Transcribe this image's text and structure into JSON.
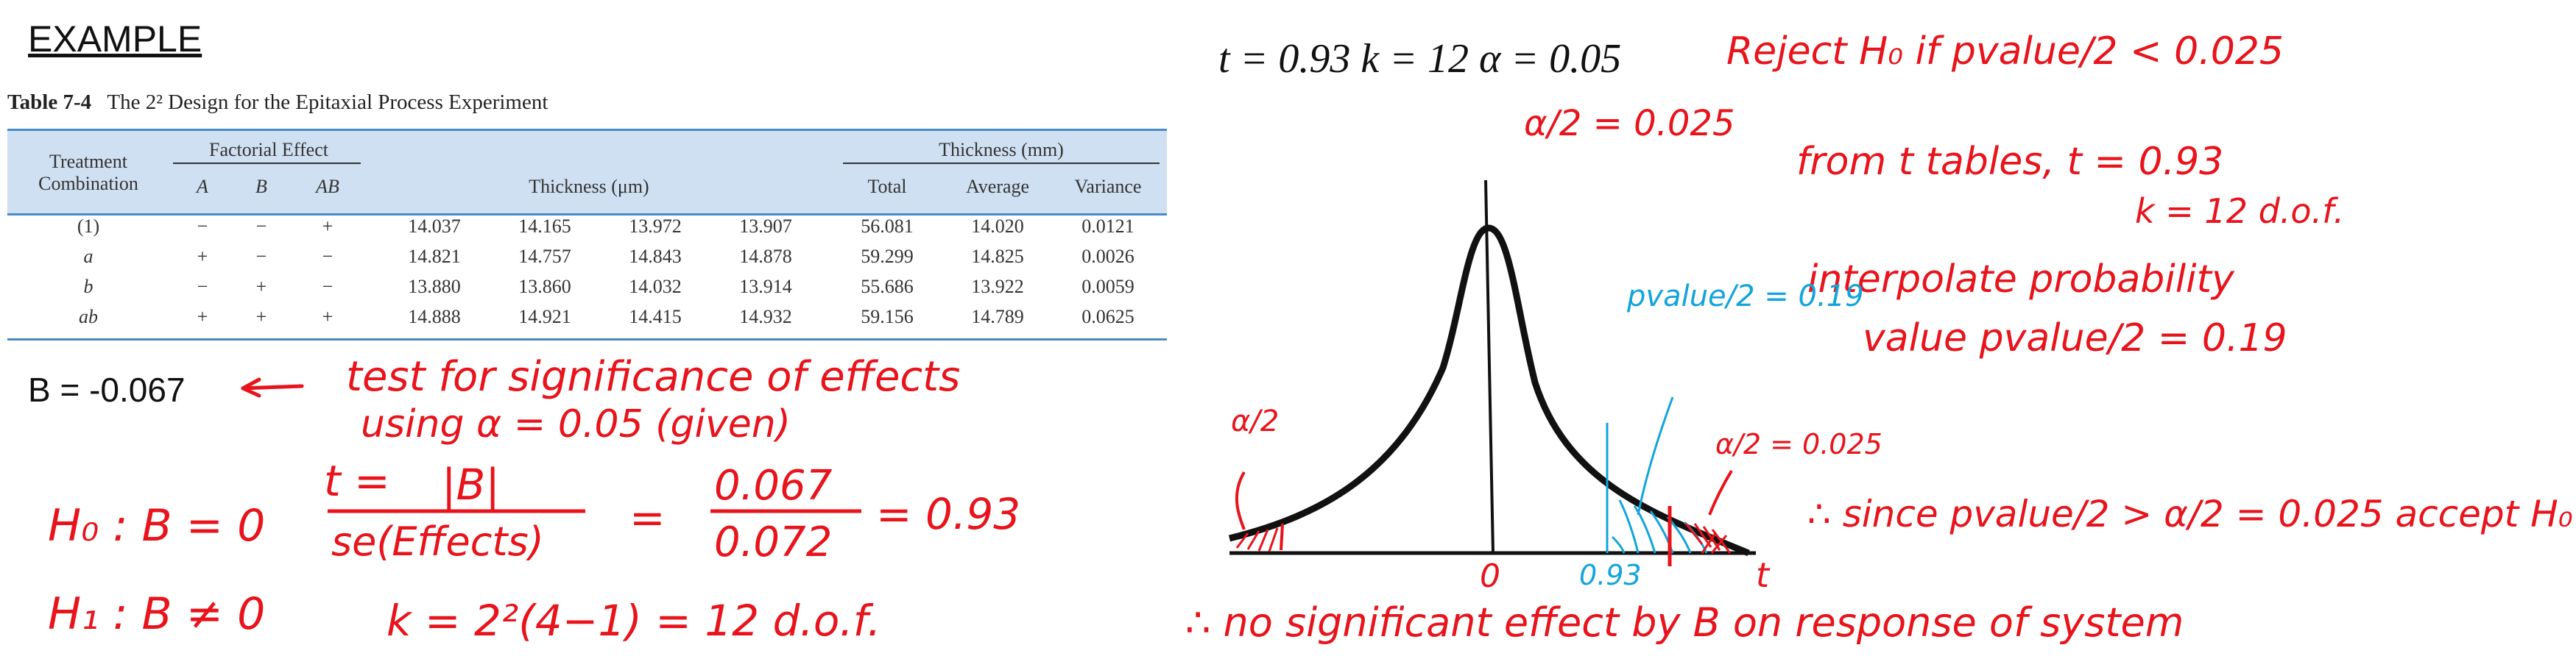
{
  "title": "EXAMPLE",
  "table": {
    "caption_label": "Table 7-4",
    "caption_text": "The 2² Design for the Epitaxial Process Experiment",
    "col_treatment_line1": "Treatment",
    "col_treatment_line2": "Combination",
    "group_factorial": "Factorial Effect",
    "col_A": "A",
    "col_B": "B",
    "col_AB": "AB",
    "group_thickness_um": "Thickness (μm)",
    "group_thickness_mm": "Thickness (mm)",
    "col_total": "Total",
    "col_average": "Average",
    "col_variance": "Variance",
    "rows": [
      {
        "tc": "(1)",
        "A": "−",
        "B": "−",
        "AB": "+",
        "t1": "14.037",
        "t2": "14.165",
        "t3": "13.972",
        "t4": "13.907",
        "total": "56.081",
        "average": "14.020",
        "variance": "0.0121"
      },
      {
        "tc": "a",
        "A": "+",
        "B": "−",
        "AB": "−",
        "t1": "14.821",
        "t2": "14.757",
        "t3": "14.843",
        "t4": "14.878",
        "total": "59.299",
        "average": "14.825",
        "variance": "0.0026"
      },
      {
        "tc": "b",
        "A": "−",
        "B": "+",
        "AB": "−",
        "t1": "13.880",
        "t2": "13.860",
        "t3": "14.032",
        "t4": "13.914",
        "total": "55.686",
        "average": "13.922",
        "variance": "0.0059"
      },
      {
        "tc": "ab",
        "A": "+",
        "B": "+",
        "AB": "+",
        "t1": "14.888",
        "t2": "14.921",
        "t3": "14.415",
        "t4": "14.932",
        "total": "59.156",
        "average": "14.789",
        "variance": "0.0625"
      }
    ]
  },
  "b_value": "B = -0.067",
  "notes": {
    "test_line1": "test for significance of effects",
    "test_line2": "using α = 0.05 (given)",
    "h0": "H₀ : B = 0",
    "h1": "H₁ : B ≠ 0",
    "t_lhs": "t =",
    "t_num": "|B|",
    "t_den": "se(Effects)",
    "eq1": "=",
    "frac_num": "0.067",
    "frac_den": "0.072",
    "t_result": "= 0.93",
    "k_eq": "k = 2²(4−1) = 12 d.o.f.",
    "params": "t = 0.93    k = 12    α = 0.05",
    "alpha_half": "α/2 = 0.025",
    "reject_rule": "Reject H₀ if pvalue/2 < 0.025",
    "from_tables_1": "from t tables,  t = 0.93",
    "from_tables_2": "k = 12 d.o.f.",
    "interp_1": "interpolate probability",
    "interp_2": "value  pvalue/2 = 0.19",
    "pvalue_blue": "pvalue/2 = 0.19",
    "a2_left": "α/2",
    "a2_right": "α/2 = 0.025",
    "axis_zero": "0",
    "axis_093": "0.93",
    "axis_t": "t",
    "since": "∴ since pvalue/2 > α/2 = 0.025 accept H₀",
    "conclusion": "∴ no significant effect by B on response of system"
  },
  "colors": {
    "ink_red": "#e8131b",
    "ink_blue": "#12a4dc",
    "table_header": "#cfe0f2",
    "table_rule": "#4a8ac4"
  }
}
